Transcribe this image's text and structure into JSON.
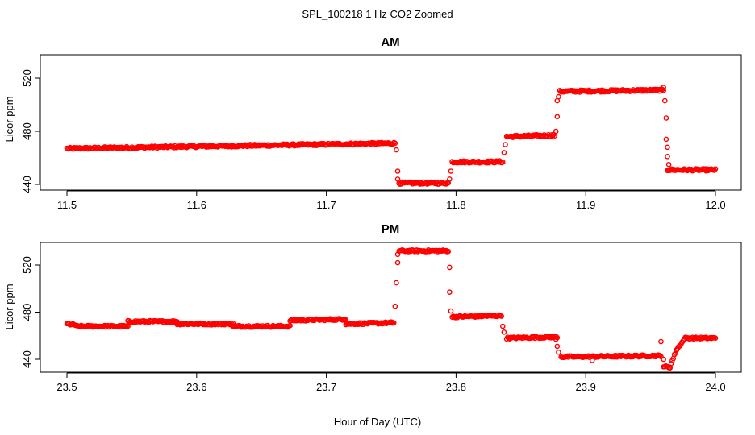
{
  "figure": {
    "title": "SPL_100218  1 Hz CO2 Zoomed",
    "xlabel": "Hour of Day (UTC)"
  },
  "chart_data": [
    {
      "type": "scatter",
      "title": "AM",
      "ylabel": "Licor ppm",
      "xlim": [
        11.5,
        12.0
      ],
      "ylim": [
        436,
        542
      ],
      "xticks": [
        "11.5",
        "11.6",
        "11.7",
        "11.8",
        "11.9",
        "12.0"
      ],
      "yticks": [
        "440",
        "480",
        "520"
      ],
      "marker_color": "#ff0000",
      "segments": [
        {
          "x0": 11.5,
          "x1": 11.753,
          "y0": 467,
          "y1": 471
        },
        {
          "x0": 11.756,
          "x1": 11.794,
          "y0": 441,
          "y1": 441
        },
        {
          "x0": 11.797,
          "x1": 11.836,
          "y0": 457,
          "y1": 457
        },
        {
          "x0": 11.839,
          "x1": 11.876,
          "y0": 476,
          "y1": 477
        },
        {
          "x0": 11.88,
          "x1": 11.96,
          "y0": 510,
          "y1": 511
        },
        {
          "x0": 11.963,
          "x1": 12.0,
          "y0": 451,
          "y1": 451
        }
      ],
      "transitions": [
        {
          "x": 11.754,
          "y": 466
        },
        {
          "x": 11.755,
          "y": 450
        },
        {
          "x": 11.755,
          "y": 444
        },
        {
          "x": 11.795,
          "y": 444
        },
        {
          "x": 11.796,
          "y": 450
        },
        {
          "x": 11.837,
          "y": 464
        },
        {
          "x": 11.838,
          "y": 470
        },
        {
          "x": 11.877,
          "y": 480
        },
        {
          "x": 11.878,
          "y": 491
        },
        {
          "x": 11.878,
          "y": 503
        },
        {
          "x": 11.879,
          "y": 506
        },
        {
          "x": 11.96,
          "y": 513
        },
        {
          "x": 11.961,
          "y": 503
        },
        {
          "x": 11.962,
          "y": 490
        },
        {
          "x": 11.962,
          "y": 474
        },
        {
          "x": 11.963,
          "y": 468
        },
        {
          "x": 11.963,
          "y": 461
        },
        {
          "x": 11.964,
          "y": 455
        }
      ]
    },
    {
      "type": "scatter",
      "title": "PM",
      "ylabel": "Licor ppm",
      "xlim": [
        23.5,
        24.0
      ],
      "ylim": [
        430,
        541
      ],
      "xticks": [
        "23.5",
        "23.6",
        "23.7",
        "23.8",
        "23.9",
        "24.0"
      ],
      "yticks": [
        "440",
        "480",
        "520"
      ],
      "marker_color": "#ff0000",
      "segments": [
        {
          "x0": 23.5,
          "x1": 23.507,
          "y0": 470,
          "y1": 469
        },
        {
          "x0": 23.507,
          "x1": 23.547,
          "y0": 468,
          "y1": 468
        },
        {
          "x0": 23.547,
          "x1": 23.585,
          "y0": 472,
          "y1": 472
        },
        {
          "x0": 23.585,
          "x1": 23.628,
          "y0": 470,
          "y1": 470
        },
        {
          "x0": 23.628,
          "x1": 23.672,
          "y0": 468,
          "y1": 468
        },
        {
          "x0": 23.672,
          "x1": 23.715,
          "y0": 473,
          "y1": 474
        },
        {
          "x0": 23.715,
          "x1": 23.752,
          "y0": 470,
          "y1": 471
        },
        {
          "x0": 23.756,
          "x1": 23.794,
          "y0": 532,
          "y1": 532
        },
        {
          "x0": 23.797,
          "x1": 23.835,
          "y0": 476,
          "y1": 477
        },
        {
          "x0": 23.839,
          "x1": 23.878,
          "y0": 458,
          "y1": 459
        },
        {
          "x0": 23.881,
          "x1": 23.958,
          "y0": 442,
          "y1": 443
        },
        {
          "x0": 23.96,
          "x1": 23.965,
          "y0": 434,
          "y1": 433
        },
        {
          "x0": 23.965,
          "x1": 23.97,
          "y0": 434,
          "y1": 448
        },
        {
          "x0": 23.97,
          "x1": 23.976,
          "y0": 448,
          "y1": 457
        },
        {
          "x0": 23.976,
          "x1": 24.0,
          "y0": 458,
          "y1": 458
        }
      ],
      "transitions": [
        {
          "x": 23.753,
          "y": 485
        },
        {
          "x": 23.754,
          "y": 505
        },
        {
          "x": 23.755,
          "y": 522
        },
        {
          "x": 23.755,
          "y": 529
        },
        {
          "x": 23.795,
          "y": 518
        },
        {
          "x": 23.795,
          "y": 497
        },
        {
          "x": 23.796,
          "y": 481
        },
        {
          "x": 23.836,
          "y": 468
        },
        {
          "x": 23.837,
          "y": 463
        },
        {
          "x": 23.877,
          "y": 457
        },
        {
          "x": 23.878,
          "y": 451
        },
        {
          "x": 23.879,
          "y": 446
        },
        {
          "x": 23.958,
          "y": 455
        },
        {
          "x": 23.96,
          "y": 440
        },
        {
          "x": 23.905,
          "y": 439
        }
      ]
    }
  ]
}
